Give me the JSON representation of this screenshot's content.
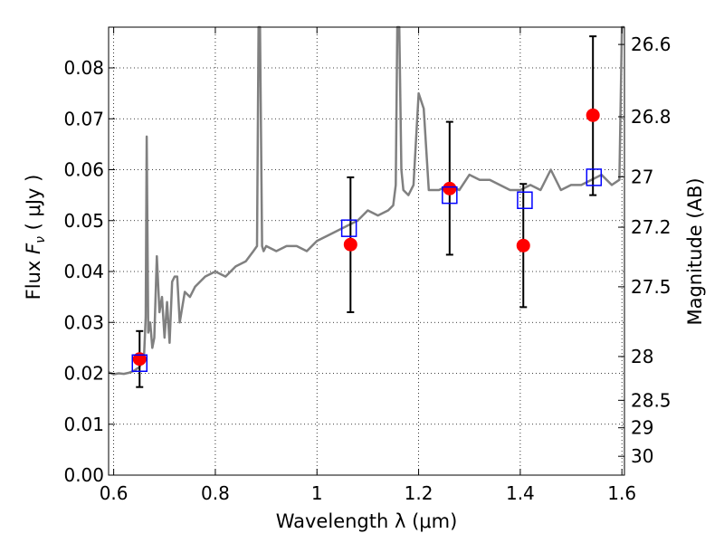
{
  "chart_data": {
    "type": "scatter",
    "title": "",
    "xlabel": "Wavelength  λ (μm)",
    "ylabel_prefix": "Flux  ",
    "ylabel_symbol": "F",
    "ylabel_subscript": "ν",
    "ylabel_unit": "  ( μJy )",
    "y2label": "Magnitude (AB)",
    "xlim": [
      0.59,
      1.605
    ],
    "ylim": [
      0.0,
      0.088
    ],
    "grid": true,
    "x_ticks": [
      0.6,
      0.8,
      1.0,
      1.2,
      1.4,
      1.6
    ],
    "x_tick_labels": [
      "0.6",
      "0.8",
      "1",
      "1.2",
      "1.4",
      "1.6"
    ],
    "y_ticks": [
      0.0,
      0.01,
      0.02,
      0.03,
      0.04,
      0.05,
      0.06,
      0.07,
      0.08
    ],
    "y_tick_labels": [
      "0.00",
      "0.01",
      "0.02",
      "0.03",
      "0.04",
      "0.05",
      "0.06",
      "0.07",
      "0.08"
    ],
    "y2_ticks": [
      {
        "label": "26.6",
        "flux": 0.0846
      },
      {
        "label": "26.8",
        "flux": 0.0704
      },
      {
        "label": "27",
        "flux": 0.0586
      },
      {
        "label": "27.2",
        "flux": 0.0487
      },
      {
        "label": "27.5",
        "flux": 0.037
      },
      {
        "label": "28",
        "flux": 0.0233
      },
      {
        "label": "28.5",
        "flux": 0.0147
      },
      {
        "label": "29",
        "flux": 0.0093
      },
      {
        "label": "30",
        "flux": 0.0037
      }
    ],
    "series": [
      {
        "kind": "spectrum",
        "color": "#808080",
        "x": [
          0.59,
          0.6,
          0.61,
          0.62,
          0.63,
          0.64,
          0.65,
          0.655,
          0.66,
          0.663,
          0.665,
          0.668,
          0.672,
          0.676,
          0.68,
          0.685,
          0.69,
          0.695,
          0.7,
          0.705,
          0.71,
          0.715,
          0.72,
          0.725,
          0.73,
          0.74,
          0.75,
          0.76,
          0.77,
          0.78,
          0.8,
          0.82,
          0.84,
          0.86,
          0.875,
          0.882,
          0.885,
          0.888,
          0.892,
          0.895,
          0.9,
          0.92,
          0.94,
          0.96,
          0.98,
          1.0,
          1.02,
          1.04,
          1.06,
          1.08,
          1.1,
          1.12,
          1.14,
          1.15,
          1.155,
          1.158,
          1.162,
          1.166,
          1.17,
          1.18,
          1.19,
          1.2,
          1.21,
          1.22,
          1.24,
          1.26,
          1.28,
          1.3,
          1.32,
          1.34,
          1.36,
          1.38,
          1.4,
          1.42,
          1.44,
          1.46,
          1.48,
          1.5,
          1.52,
          1.54,
          1.56,
          1.58,
          1.595,
          1.6,
          1.605
        ],
        "y": [
          0.0202,
          0.0198,
          0.02,
          0.0199,
          0.0201,
          0.0205,
          0.0212,
          0.022,
          0.024,
          0.031,
          0.0665,
          0.028,
          0.03,
          0.025,
          0.027,
          0.043,
          0.032,
          0.035,
          0.027,
          0.034,
          0.026,
          0.038,
          0.039,
          0.039,
          0.03,
          0.036,
          0.035,
          0.037,
          0.038,
          0.039,
          0.04,
          0.039,
          0.041,
          0.042,
          0.044,
          0.045,
          0.088,
          0.088,
          0.045,
          0.044,
          0.045,
          0.044,
          0.045,
          0.045,
          0.044,
          0.046,
          0.047,
          0.048,
          0.049,
          0.05,
          0.052,
          0.051,
          0.052,
          0.053,
          0.057,
          0.088,
          0.088,
          0.06,
          0.056,
          0.055,
          0.057,
          0.075,
          0.072,
          0.056,
          0.056,
          0.057,
          0.056,
          0.059,
          0.058,
          0.058,
          0.057,
          0.056,
          0.056,
          0.057,
          0.056,
          0.06,
          0.056,
          0.057,
          0.057,
          0.058,
          0.059,
          0.057,
          0.058,
          0.088,
          0.088
        ]
      },
      {
        "kind": "model_photometry",
        "marker": "open-square",
        "color": "#0000ff",
        "x": [
          0.651,
          1.063,
          1.261,
          1.409,
          1.545
        ],
        "y": [
          0.022,
          0.0485,
          0.055,
          0.054,
          0.0585
        ]
      },
      {
        "kind": "observed_photometry",
        "marker": "filled-circle",
        "color": "#ff0000",
        "x": [
          0.651,
          1.066,
          1.261,
          1.406,
          1.543
        ],
        "y": [
          0.0228,
          0.0453,
          0.0563,
          0.0451,
          0.0707
        ],
        "yerr_low": [
          0.0173,
          0.032,
          0.0433,
          0.033,
          0.055
        ],
        "yerr_high": [
          0.0283,
          0.0585,
          0.0694,
          0.0572,
          0.0862
        ]
      }
    ]
  }
}
